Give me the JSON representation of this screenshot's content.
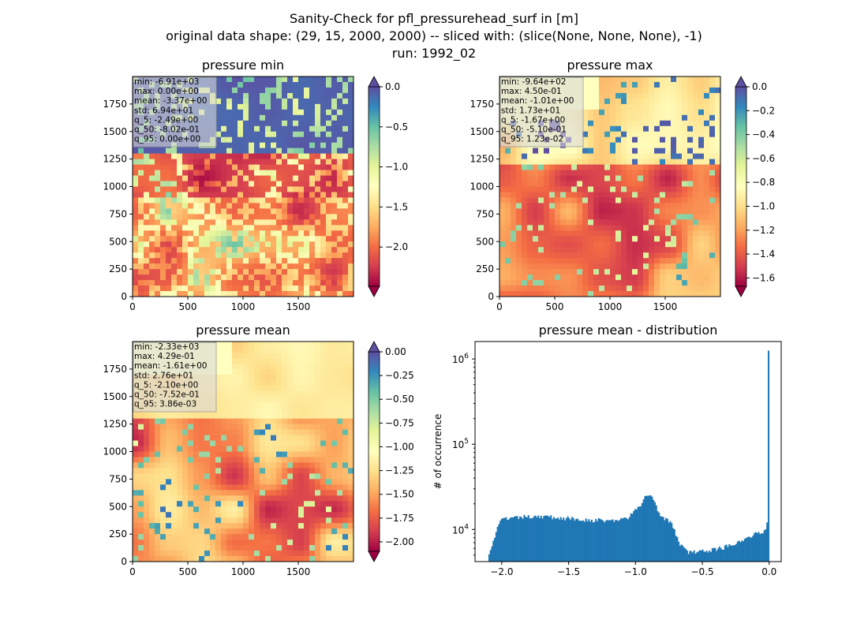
{
  "figure": {
    "title_lines": [
      "Sanity-Check for pfl_pressurehead_surf in [m]",
      "original data shape: (29, 15, 2000, 2000) -- sliced with: (slice(None, None, None), -1)",
      "run: 1992_02"
    ]
  },
  "colormap": {
    "name": "Spectral",
    "stops": [
      "#9e0142",
      "#d53e4f",
      "#f46d43",
      "#fdae61",
      "#fee08b",
      "#ffffbf",
      "#e6f598",
      "#abdda4",
      "#66c2a5",
      "#3288bd",
      "#5e4fa2"
    ]
  },
  "chart_data": [
    {
      "type": "heatmap",
      "title": "pressure min",
      "x_ticks": [
        "0",
        "500",
        "1000",
        "1500"
      ],
      "y_ticks": [
        "0",
        "250",
        "500",
        "750",
        "1000",
        "1250",
        "1500",
        "1750"
      ],
      "xlim": [
        0,
        2000
      ],
      "ylim": [
        0,
        2000
      ],
      "colorbar": {
        "range": [
          -2.49,
          0.0
        ],
        "ticks": [
          "0.0",
          "−0.5",
          "−1.0",
          "−1.5",
          "−2.0"
        ],
        "tick_values": [
          0.0,
          -0.5,
          -1.0,
          -1.5,
          -2.0
        ],
        "extend": "both"
      },
      "stats": [
        "min: -6.91e+03",
        "max: 0.00e+00",
        "mean: -3.37e+00",
        "std: 6.94e+01",
        "q_5: -2.49e+00",
        "q_50: -8.02e-01",
        "q_95: 0.00e+00"
      ]
    },
    {
      "type": "heatmap",
      "title": "pressure max",
      "x_ticks": [
        "0",
        "500",
        "1000",
        "1500"
      ],
      "y_ticks": [
        "0",
        "250",
        "500",
        "750",
        "1000",
        "1250",
        "1500",
        "1750"
      ],
      "xlim": [
        0,
        2000
      ],
      "ylim": [
        0,
        2000
      ],
      "colorbar": {
        "range": [
          -1.67,
          0.0
        ],
        "ticks": [
          "0.0",
          "−0.2",
          "−0.4",
          "−0.6",
          "−0.8",
          "−1.0",
          "−1.2",
          "−1.4",
          "−1.6"
        ],
        "tick_values": [
          0.0,
          -0.2,
          -0.4,
          -0.6,
          -0.8,
          -1.0,
          -1.2,
          -1.4,
          -1.6
        ],
        "extend": "both"
      },
      "stats": [
        "min: -9.64e+02",
        "max: 4.50e-01",
        "mean: -1.01e+00",
        "std: 1.73e+01",
        "q_5: -1.67e+00",
        "q_50: -5.10e-01",
        "q_95: 1.23e-02"
      ]
    },
    {
      "type": "heatmap",
      "title": "pressure mean",
      "x_ticks": [
        "0",
        "500",
        "1000",
        "1500"
      ],
      "y_ticks": [
        "0",
        "250",
        "500",
        "750",
        "1000",
        "1250",
        "1500",
        "1750"
      ],
      "xlim": [
        0,
        2000
      ],
      "ylim": [
        0,
        2000
      ],
      "colorbar": {
        "range": [
          -2.1,
          0.0
        ],
        "ticks": [
          "0.00",
          "−0.25",
          "−0.50",
          "−0.75",
          "−1.00",
          "−1.25",
          "−1.50",
          "−1.75",
          "−2.00"
        ],
        "tick_values": [
          0.0,
          -0.25,
          -0.5,
          -0.75,
          -1.0,
          -1.25,
          -1.5,
          -1.75,
          -2.0
        ],
        "extend": "both"
      },
      "stats": [
        "min: -2.33e+03",
        "max: 4.29e-01",
        "mean: -1.61e+00",
        "std: 2.76e+01",
        "q_5: -2.10e+00",
        "q_50: -7.52e-01",
        "q_95: 3.86e-03"
      ]
    },
    {
      "type": "bar",
      "title": "pressure mean - distribution",
      "xlabel": "",
      "ylabel": "# of occurrence",
      "y_scale": "log",
      "xlim": [
        -2.2,
        0.09
      ],
      "ylim": [
        4200,
        1600000
      ],
      "x_ticks": [
        -2.0,
        -1.5,
        -1.0,
        -0.5,
        0.0
      ],
      "x_tick_labels": [
        "−2.0",
        "−1.5",
        "−1.0",
        "−0.5",
        "0.0"
      ],
      "y_ticks": [
        10000,
        100000,
        1000000
      ],
      "y_tick_labels": [
        "10^4",
        "10^5",
        "10^6"
      ],
      "bin_edges_range": [
        -2.1,
        0.0
      ],
      "color": "#1f77b4",
      "envelope_points": [
        [
          -2.1,
          5200
        ],
        [
          -2.08,
          6200
        ],
        [
          -2.06,
          7500
        ],
        [
          -2.04,
          9500
        ],
        [
          -2.02,
          11500
        ],
        [
          -2.0,
          13000
        ],
        [
          -1.95,
          13500
        ],
        [
          -1.9,
          13500
        ],
        [
          -1.85,
          14000
        ],
        [
          -1.8,
          14000
        ],
        [
          -1.75,
          14500
        ],
        [
          -1.7,
          14200
        ],
        [
          -1.65,
          14000
        ],
        [
          -1.6,
          13800
        ],
        [
          -1.55,
          13600
        ],
        [
          -1.5,
          13400
        ],
        [
          -1.45,
          13200
        ],
        [
          -1.4,
          13000
        ],
        [
          -1.35,
          13000
        ],
        [
          -1.3,
          12800
        ],
        [
          -1.25,
          12800
        ],
        [
          -1.2,
          12700
        ],
        [
          -1.15,
          12800
        ],
        [
          -1.1,
          13000
        ],
        [
          -1.05,
          14000
        ],
        [
          -1.02,
          15500
        ],
        [
          -1.0,
          16500
        ],
        [
          -0.97,
          18500
        ],
        [
          -0.94,
          22000
        ],
        [
          -0.92,
          25000
        ],
        [
          -0.9,
          25500
        ],
        [
          -0.88,
          24500
        ],
        [
          -0.86,
          22000
        ],
        [
          -0.84,
          18000
        ],
        [
          -0.82,
          15500
        ],
        [
          -0.8,
          14500
        ],
        [
          -0.78,
          13500
        ],
        [
          -0.76,
          12800
        ],
        [
          -0.74,
          12000
        ],
        [
          -0.72,
          10500
        ],
        [
          -0.7,
          9000
        ],
        [
          -0.68,
          7500
        ],
        [
          -0.66,
          6500
        ],
        [
          -0.64,
          6000
        ],
        [
          -0.62,
          5600
        ],
        [
          -0.6,
          5400
        ],
        [
          -0.55,
          5400
        ],
        [
          -0.5,
          5500
        ],
        [
          -0.45,
          5700
        ],
        [
          -0.4,
          5900
        ],
        [
          -0.35,
          6100
        ],
        [
          -0.3,
          6500
        ],
        [
          -0.25,
          7000
        ],
        [
          -0.2,
          7600
        ],
        [
          -0.15,
          8300
        ],
        [
          -0.1,
          8800
        ],
        [
          -0.06,
          9200
        ],
        [
          -0.04,
          9600
        ],
        [
          -0.02,
          11000
        ],
        [
          -0.01,
          15000
        ],
        [
          0.0,
          1250000
        ]
      ]
    }
  ]
}
